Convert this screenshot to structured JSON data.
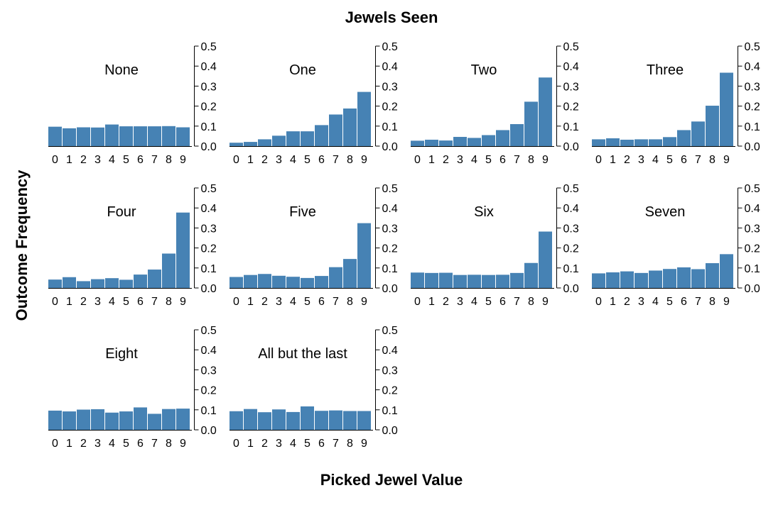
{
  "figure": {
    "title": "Jewels Seen",
    "xlabel": "Picked Jewel Value",
    "ylabel": "Outcome Frequency"
  },
  "colors": {
    "bar": "#4682b4",
    "axis": "#000000"
  },
  "chart_data": {
    "type": "bar",
    "layout": "small-multiples",
    "title": "Jewels Seen",
    "xlabel": "Picked Jewel Value",
    "ylabel": "Outcome Frequency",
    "categories": [
      "0",
      "1",
      "2",
      "3",
      "4",
      "5",
      "6",
      "7",
      "8",
      "9"
    ],
    "ylim": [
      0,
      0.5
    ],
    "yticks": [
      "0.0",
      "0.1",
      "0.2",
      "0.3",
      "0.4",
      "0.5"
    ],
    "grid": false,
    "panels": [
      {
        "name": "None",
        "values": [
          0.097,
          0.089,
          0.094,
          0.093,
          0.108,
          0.099,
          0.099,
          0.099,
          0.1,
          0.094
        ]
      },
      {
        "name": "One",
        "values": [
          0.017,
          0.021,
          0.034,
          0.052,
          0.074,
          0.074,
          0.105,
          0.158,
          0.188,
          0.271
        ]
      },
      {
        "name": "Two",
        "values": [
          0.027,
          0.032,
          0.028,
          0.046,
          0.041,
          0.055,
          0.08,
          0.11,
          0.222,
          0.343
        ]
      },
      {
        "name": "Three",
        "values": [
          0.034,
          0.039,
          0.032,
          0.034,
          0.034,
          0.045,
          0.08,
          0.123,
          0.202,
          0.367
        ]
      },
      {
        "name": "Four",
        "values": [
          0.042,
          0.054,
          0.034,
          0.044,
          0.049,
          0.041,
          0.067,
          0.092,
          0.172,
          0.377
        ]
      },
      {
        "name": "Five",
        "values": [
          0.055,
          0.065,
          0.07,
          0.061,
          0.056,
          0.05,
          0.06,
          0.104,
          0.145,
          0.324
        ]
      },
      {
        "name": "Six",
        "values": [
          0.077,
          0.075,
          0.076,
          0.065,
          0.066,
          0.065,
          0.066,
          0.075,
          0.125,
          0.282
        ]
      },
      {
        "name": "Seven",
        "values": [
          0.073,
          0.078,
          0.083,
          0.075,
          0.087,
          0.095,
          0.103,
          0.094,
          0.124,
          0.169
        ]
      },
      {
        "name": "Eight",
        "values": [
          0.096,
          0.092,
          0.101,
          0.103,
          0.086,
          0.092,
          0.112,
          0.08,
          0.104,
          0.106
        ]
      },
      {
        "name": "All but the last",
        "values": [
          0.093,
          0.104,
          0.088,
          0.102,
          0.089,
          0.117,
          0.095,
          0.097,
          0.094,
          0.094
        ]
      }
    ]
  }
}
